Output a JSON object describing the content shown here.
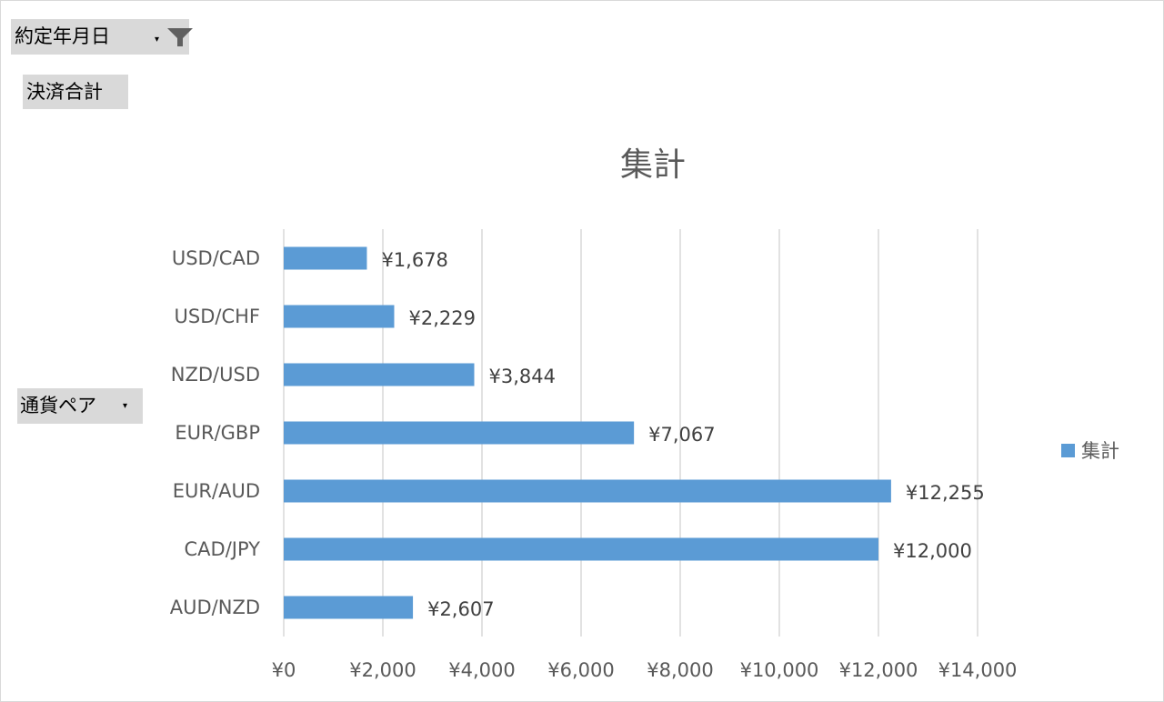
{
  "fields": {
    "date_filter_label": "約定年月日",
    "sum_label": "決済合計",
    "pair_label": "通貨ペア",
    "dropdown_glyph": "▾"
  },
  "colors": {
    "bar": "#5b9bd5",
    "grid": "#d9d9d9",
    "text": "#595959",
    "field_bg": "#d9d9d9"
  },
  "chart_data": {
    "type": "bar",
    "orientation": "horizontal",
    "title": "集計",
    "categories": [
      "USD/CAD",
      "USD/CHF",
      "NZD/USD",
      "EUR/GBP",
      "EUR/AUD",
      "CAD/JPY",
      "AUD/NZD"
    ],
    "series": [
      {
        "name": "集計",
        "values": [
          1678,
          2229,
          3844,
          7067,
          12255,
          12000,
          2607
        ],
        "labels": [
          "¥1,678",
          "¥2,229",
          "¥3,844",
          "¥7,067",
          "¥12,255",
          "¥12,000",
          "¥2,607"
        ]
      }
    ],
    "xlim": [
      0,
      14000
    ],
    "xticks": [
      0,
      2000,
      4000,
      6000,
      8000,
      10000,
      12000,
      14000
    ],
    "xtick_labels": [
      "¥0",
      "¥2,000",
      "¥4,000",
      "¥6,000",
      "¥8,000",
      "¥10,000",
      "¥12,000",
      "¥14,000"
    ],
    "grid": true,
    "legend": "right"
  }
}
